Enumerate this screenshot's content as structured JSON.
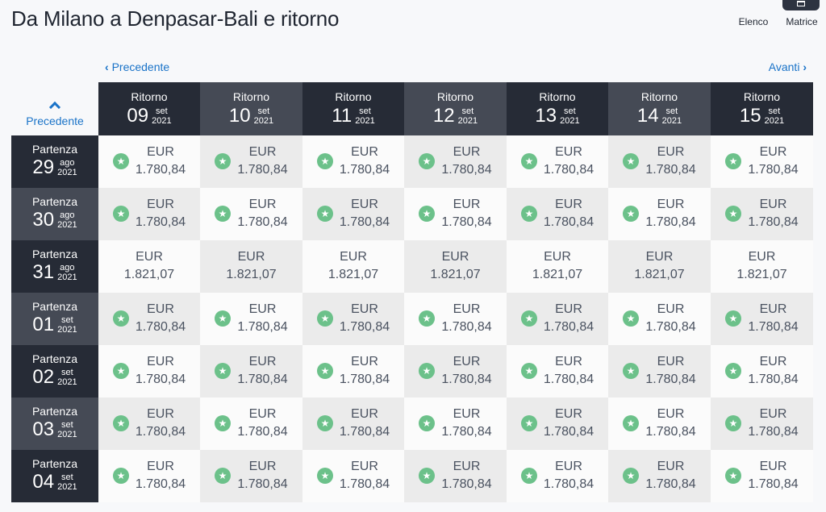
{
  "title": "Da Milano a Denpasar-Bali e ritorno",
  "view": {
    "list_label": "Elenco",
    "matrix_label": "Matrice"
  },
  "nav": {
    "prev_label": "Precedente",
    "next_label": "Avanti",
    "up_label": "Precedente"
  },
  "columns": [
    {
      "label": "Ritorno",
      "day": "09",
      "month": "set",
      "year": "2021"
    },
    {
      "label": "Ritorno",
      "day": "10",
      "month": "set",
      "year": "2021"
    },
    {
      "label": "Ritorno",
      "day": "11",
      "month": "set",
      "year": "2021"
    },
    {
      "label": "Ritorno",
      "day": "12",
      "month": "set",
      "year": "2021"
    },
    {
      "label": "Ritorno",
      "day": "13",
      "month": "set",
      "year": "2021"
    },
    {
      "label": "Ritorno",
      "day": "14",
      "month": "set",
      "year": "2021"
    },
    {
      "label": "Ritorno",
      "day": "15",
      "month": "set",
      "year": "2021"
    }
  ],
  "rows": [
    {
      "label": "Partenza",
      "day": "29",
      "month": "ago",
      "year": "2021",
      "prices": [
        {
          "currency": "EUR",
          "amount": "1.780,84",
          "star": true
        },
        {
          "currency": "EUR",
          "amount": "1.780,84",
          "star": true
        },
        {
          "currency": "EUR",
          "amount": "1.780,84",
          "star": true
        },
        {
          "currency": "EUR",
          "amount": "1.780,84",
          "star": true
        },
        {
          "currency": "EUR",
          "amount": "1.780,84",
          "star": true
        },
        {
          "currency": "EUR",
          "amount": "1.780,84",
          "star": true
        },
        {
          "currency": "EUR",
          "amount": "1.780,84",
          "star": true
        }
      ]
    },
    {
      "label": "Partenza",
      "day": "30",
      "month": "ago",
      "year": "2021",
      "prices": [
        {
          "currency": "EUR",
          "amount": "1.780,84",
          "star": true
        },
        {
          "currency": "EUR",
          "amount": "1.780,84",
          "star": true
        },
        {
          "currency": "EUR",
          "amount": "1.780,84",
          "star": true
        },
        {
          "currency": "EUR",
          "amount": "1.780,84",
          "star": true
        },
        {
          "currency": "EUR",
          "amount": "1.780,84",
          "star": true
        },
        {
          "currency": "EUR",
          "amount": "1.780,84",
          "star": true
        },
        {
          "currency": "EUR",
          "amount": "1.780,84",
          "star": true
        }
      ]
    },
    {
      "label": "Partenza",
      "day": "31",
      "month": "ago",
      "year": "2021",
      "prices": [
        {
          "currency": "EUR",
          "amount": "1.821,07",
          "star": false
        },
        {
          "currency": "EUR",
          "amount": "1.821,07",
          "star": false
        },
        {
          "currency": "EUR",
          "amount": "1.821,07",
          "star": false
        },
        {
          "currency": "EUR",
          "amount": "1.821,07",
          "star": false
        },
        {
          "currency": "EUR",
          "amount": "1.821,07",
          "star": false
        },
        {
          "currency": "EUR",
          "amount": "1.821,07",
          "star": false
        },
        {
          "currency": "EUR",
          "amount": "1.821,07",
          "star": false
        }
      ]
    },
    {
      "label": "Partenza",
      "day": "01",
      "month": "set",
      "year": "2021",
      "prices": [
        {
          "currency": "EUR",
          "amount": "1.780,84",
          "star": true
        },
        {
          "currency": "EUR",
          "amount": "1.780,84",
          "star": true
        },
        {
          "currency": "EUR",
          "amount": "1.780,84",
          "star": true
        },
        {
          "currency": "EUR",
          "amount": "1.780,84",
          "star": true
        },
        {
          "currency": "EUR",
          "amount": "1.780,84",
          "star": true
        },
        {
          "currency": "EUR",
          "amount": "1.780,84",
          "star": true
        },
        {
          "currency": "EUR",
          "amount": "1.780,84",
          "star": true
        }
      ]
    },
    {
      "label": "Partenza",
      "day": "02",
      "month": "set",
      "year": "2021",
      "prices": [
        {
          "currency": "EUR",
          "amount": "1.780,84",
          "star": true
        },
        {
          "currency": "EUR",
          "amount": "1.780,84",
          "star": true
        },
        {
          "currency": "EUR",
          "amount": "1.780,84",
          "star": true
        },
        {
          "currency": "EUR",
          "amount": "1.780,84",
          "star": true
        },
        {
          "currency": "EUR",
          "amount": "1.780,84",
          "star": true
        },
        {
          "currency": "EUR",
          "amount": "1.780,84",
          "star": true
        },
        {
          "currency": "EUR",
          "amount": "1.780,84",
          "star": true
        }
      ]
    },
    {
      "label": "Partenza",
      "day": "03",
      "month": "set",
      "year": "2021",
      "prices": [
        {
          "currency": "EUR",
          "amount": "1.780,84",
          "star": true
        },
        {
          "currency": "EUR",
          "amount": "1.780,84",
          "star": true
        },
        {
          "currency": "EUR",
          "amount": "1.780,84",
          "star": true
        },
        {
          "currency": "EUR",
          "amount": "1.780,84",
          "star": true
        },
        {
          "currency": "EUR",
          "amount": "1.780,84",
          "star": true
        },
        {
          "currency": "EUR",
          "amount": "1.780,84",
          "star": true
        },
        {
          "currency": "EUR",
          "amount": "1.780,84",
          "star": true
        }
      ]
    },
    {
      "label": "Partenza",
      "day": "04",
      "month": "set",
      "year": "2021",
      "prices": [
        {
          "currency": "EUR",
          "amount": "1.780,84",
          "star": true
        },
        {
          "currency": "EUR",
          "amount": "1.780,84",
          "star": true
        },
        {
          "currency": "EUR",
          "amount": "1.780,84",
          "star": true
        },
        {
          "currency": "EUR",
          "amount": "1.780,84",
          "star": true
        },
        {
          "currency": "EUR",
          "amount": "1.780,84",
          "star": true
        },
        {
          "currency": "EUR",
          "amount": "1.780,84",
          "star": true
        },
        {
          "currency": "EUR",
          "amount": "1.780,84",
          "star": true
        }
      ]
    }
  ],
  "icons": {
    "best_price": "star-icon"
  },
  "colors": {
    "link": "#1a73c8",
    "header_dark": "#262b36",
    "header_light": "#454a55",
    "star_badge": "#6cc18a"
  }
}
